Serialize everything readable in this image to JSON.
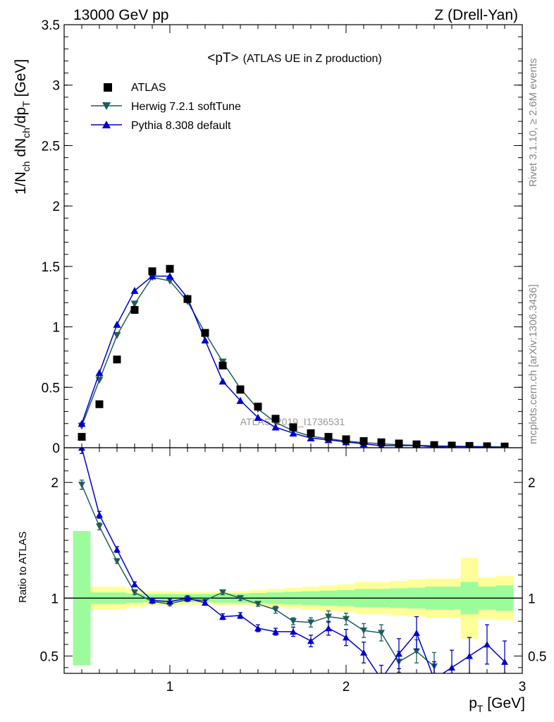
{
  "header": {
    "left": "13000 GeV pp",
    "right": "Z (Drell-Yan)"
  },
  "side_text": {
    "top": "Rivet 3.1.10, ≥ 2.6M events",
    "bottom": "mcplots.cern.ch [arXiv:1306.3436]"
  },
  "plot_title": {
    "main": "<pT>",
    "sub": "(ATLAS UE in Z production)"
  },
  "watermark": "ATLAS_2019_I1736531",
  "main_ylabel": {
    "a": "1/N",
    "a_sub": "ch",
    "b": " dN",
    "b_sub": "ch",
    "c": "/dp",
    "c_sub": "T",
    "d": " [GeV]"
  },
  "ratio_ylabel": "Ratio to ATLAS",
  "xlabel": {
    "a": "p",
    "a_sub": "T",
    "b": " [GeV]"
  },
  "colors": {
    "atlas": "#000000",
    "herwig": "#1f5c5c",
    "pythia": "#0000cc",
    "band_inner": "#9cfc9c",
    "band_outer": "#ffff99"
  },
  "chart_data": {
    "type": "scatter",
    "x_range": [
      0.4,
      3.0
    ],
    "main_ylim": [
      0,
      3.5
    ],
    "ratio_ylim": [
      0.35,
      2.3
    ],
    "main_yticks": [
      "0",
      "0.5",
      "1",
      "1.5",
      "2",
      "2.5",
      "3",
      "3.5"
    ],
    "ratio_yticks": [
      "0.5",
      "1",
      "2"
    ],
    "xticks": [
      "1",
      "2",
      "3"
    ],
    "x": [
      0.5,
      0.6,
      0.7,
      0.8,
      0.9,
      1.0,
      1.1,
      1.2,
      1.3,
      1.4,
      1.5,
      1.6,
      1.7,
      1.8,
      1.9,
      2.0,
      2.1,
      2.2,
      2.3,
      2.4,
      2.5,
      2.6,
      2.7,
      2.8,
      2.9
    ],
    "bin_edges": [
      0.45,
      0.55,
      0.65,
      0.75,
      0.85,
      0.95,
      1.05,
      1.15,
      1.25,
      1.35,
      1.45,
      1.55,
      1.65,
      1.75,
      1.85,
      1.95,
      2.05,
      2.15,
      2.25,
      2.35,
      2.45,
      2.55,
      2.65,
      2.75,
      2.85,
      2.95
    ],
    "series": [
      {
        "name": "ATLAS",
        "values": [
          0.09,
          0.36,
          0.73,
          1.14,
          1.46,
          1.48,
          1.23,
          0.95,
          0.68,
          0.48,
          0.34,
          0.24,
          0.17,
          0.12,
          0.09,
          0.07,
          0.055,
          0.045,
          0.035,
          0.028,
          0.022,
          0.018,
          0.015,
          0.012,
          0.01
        ]
      },
      {
        "name": "Herwig 7.2.1 softTune",
        "values": [
          0.18,
          0.56,
          0.93,
          1.19,
          1.41,
          1.38,
          1.21,
          0.95,
          0.71,
          0.49,
          0.32,
          0.21,
          0.14,
          0.095,
          0.075,
          0.055,
          0.042,
          0.033,
          0.025,
          0.02,
          0.016,
          0.013,
          0.011,
          0.009,
          0.008
        ],
        "ratio": [
          1.98,
          1.62,
          1.32,
          1.05,
          0.97,
          0.95,
          0.99,
          0.98,
          1.05,
          1.0,
          0.95,
          0.9,
          0.8,
          0.79,
          0.84,
          0.82,
          0.72,
          0.7,
          0.45,
          0.54,
          0.41,
          null,
          null,
          null,
          null
        ],
        "ratio_err": [
          0.04,
          0.03,
          0.02,
          0.02,
          0.015,
          0.015,
          0.02,
          0.02,
          0.02,
          0.02,
          0.02,
          0.03,
          0.03,
          0.04,
          0.05,
          0.05,
          0.06,
          0.07,
          0.09,
          0.1,
          0.12,
          null,
          null,
          null,
          null
        ]
      },
      {
        "name": "Pythia 8.308 default",
        "values": [
          0.2,
          0.62,
          1.02,
          1.3,
          1.42,
          1.42,
          1.24,
          0.89,
          0.55,
          0.39,
          0.25,
          0.17,
          0.12,
          0.08,
          0.065,
          0.048,
          0.032,
          0.017,
          0.018,
          0.019,
          0.006,
          0.009,
          0.009,
          0.005,
          0.001
        ],
        "ratio": [
          2.3,
          1.72,
          1.42,
          1.12,
          0.98,
          0.97,
          1.0,
          0.96,
          0.84,
          0.85,
          0.74,
          0.71,
          0.71,
          0.63,
          0.74,
          0.66,
          0.53,
          0.3,
          0.52,
          0.7,
          0.3,
          0.4,
          0.5,
          0.6,
          0.45
        ],
        "ratio_err": [
          0.05,
          0.03,
          0.025,
          0.02,
          0.02,
          0.02,
          0.02,
          0.02,
          0.025,
          0.025,
          0.03,
          0.03,
          0.04,
          0.05,
          0.06,
          0.07,
          0.09,
          0.12,
          0.13,
          0.14,
          0.15,
          0.15,
          0.16,
          0.17,
          0.18
        ]
      }
    ],
    "uncertainty_band": {
      "inner": [
        0.58,
        0.05,
        0.05,
        0.04,
        0.035,
        0.035,
        0.035,
        0.035,
        0.04,
        0.04,
        0.045,
        0.05,
        0.055,
        0.06,
        0.065,
        0.07,
        0.08,
        0.08,
        0.085,
        0.09,
        0.1,
        0.1,
        0.14,
        0.1,
        0.11
      ],
      "outer": [
        0.58,
        0.1,
        0.1,
        0.08,
        0.06,
        0.06,
        0.055,
        0.055,
        0.06,
        0.06,
        0.07,
        0.08,
        0.09,
        0.1,
        0.11,
        0.12,
        0.14,
        0.14,
        0.15,
        0.16,
        0.17,
        0.17,
        0.35,
        0.18,
        0.19
      ]
    }
  }
}
